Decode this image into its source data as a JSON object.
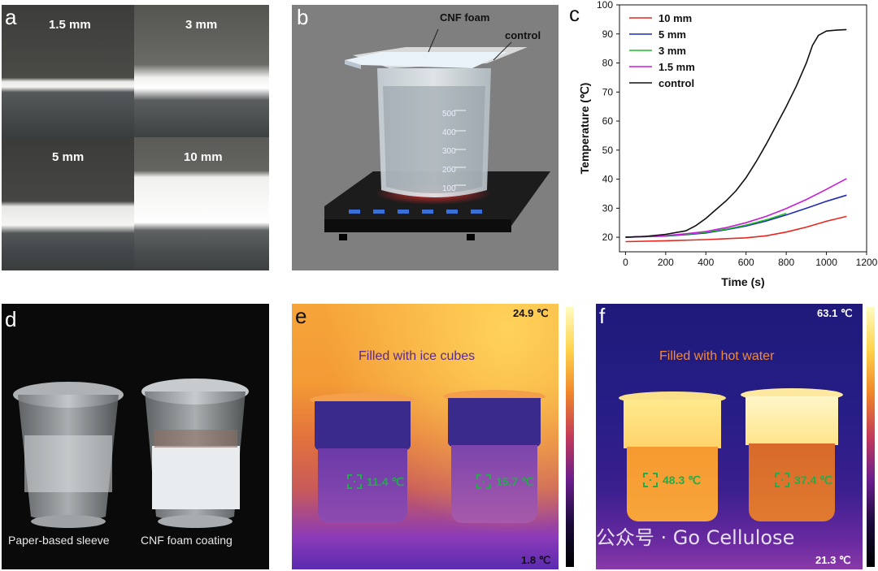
{
  "panels": {
    "a": {
      "label": "a",
      "thicknesses": [
        "1.5 mm",
        "3 mm",
        "5 mm",
        "10 mm"
      ]
    },
    "b": {
      "label": "b",
      "foam_label": "CNF foam",
      "control_label": "control",
      "beaker_marks": [
        "500",
        "400",
        "300",
        "200",
        "100"
      ]
    },
    "c": {
      "label": "c"
    },
    "d": {
      "label": "d",
      "left_caption": "Paper-based sleeve",
      "right_caption": "CNF foam coating"
    },
    "e": {
      "label": "e",
      "title": "Filled with ice cubes",
      "max_temp": "24.9 ℃",
      "min_temp": "1.8 ℃",
      "left_temp": "11.4 ℃",
      "right_temp": "15.7 ℃"
    },
    "f": {
      "label": "f",
      "title": "Filled with hot water",
      "max_temp": "63.1 ℃",
      "min_temp": "21.3 ℃",
      "left_temp": "48.3 ℃",
      "right_temp": "37.4 ℃"
    }
  },
  "watermark": "公众号 · Go Cellulose",
  "chart_data": {
    "type": "line",
    "title": "",
    "xlabel": "Time (s)",
    "ylabel": "Temperature  (℃)",
    "xlim": [
      -30,
      1200
    ],
    "ylim": [
      15,
      100
    ],
    "xticks": [
      0,
      200,
      400,
      600,
      800,
      1000,
      1200
    ],
    "yticks": [
      20,
      30,
      40,
      50,
      60,
      70,
      80,
      90,
      100
    ],
    "legend_position": "top-left",
    "series": [
      {
        "name": "10 mm",
        "color": "#e8261f",
        "x": [
          0,
          200,
          400,
          600,
          700,
          800,
          900,
          1000,
          1100
        ],
        "y": [
          18.5,
          18.8,
          19.2,
          19.8,
          20.5,
          21.8,
          23.5,
          25.5,
          27.2
        ]
      },
      {
        "name": "5 mm",
        "color": "#1f2bb8",
        "x": [
          0,
          200,
          300,
          400,
          500,
          600,
          700,
          800,
          900,
          1000,
          1100
        ],
        "y": [
          20.0,
          20.4,
          20.9,
          21.5,
          22.6,
          23.9,
          25.6,
          27.7,
          30.0,
          32.4,
          34.5
        ]
      },
      {
        "name": "3 mm",
        "color": "#1fbf2a",
        "x": [
          0,
          200,
          300,
          400,
          500,
          600,
          700,
          800
        ],
        "y": [
          20.0,
          20.5,
          21.0,
          21.7,
          22.8,
          24.2,
          26.0,
          28.2
        ]
      },
      {
        "name": "1.5 mm",
        "color": "#c61fd6",
        "x": [
          0,
          200,
          300,
          400,
          500,
          600,
          700,
          800,
          900,
          1000,
          1100
        ],
        "y": [
          20.0,
          20.6,
          21.2,
          22.0,
          23.3,
          25.0,
          27.2,
          29.9,
          33.0,
          36.5,
          40.2
        ]
      },
      {
        "name": "control",
        "color": "#111111",
        "x": [
          0,
          100,
          200,
          300,
          350,
          400,
          450,
          500,
          550,
          600,
          650,
          700,
          750,
          800,
          850,
          900,
          930,
          960,
          1000,
          1050,
          1100
        ],
        "y": [
          20.0,
          20.3,
          21.0,
          22.2,
          24.0,
          26.5,
          29.5,
          32.5,
          36.0,
          40.5,
          46.0,
          52.0,
          58.5,
          65.0,
          72.0,
          80.0,
          86.0,
          89.5,
          91.0,
          91.3,
          91.5
        ]
      }
    ]
  }
}
